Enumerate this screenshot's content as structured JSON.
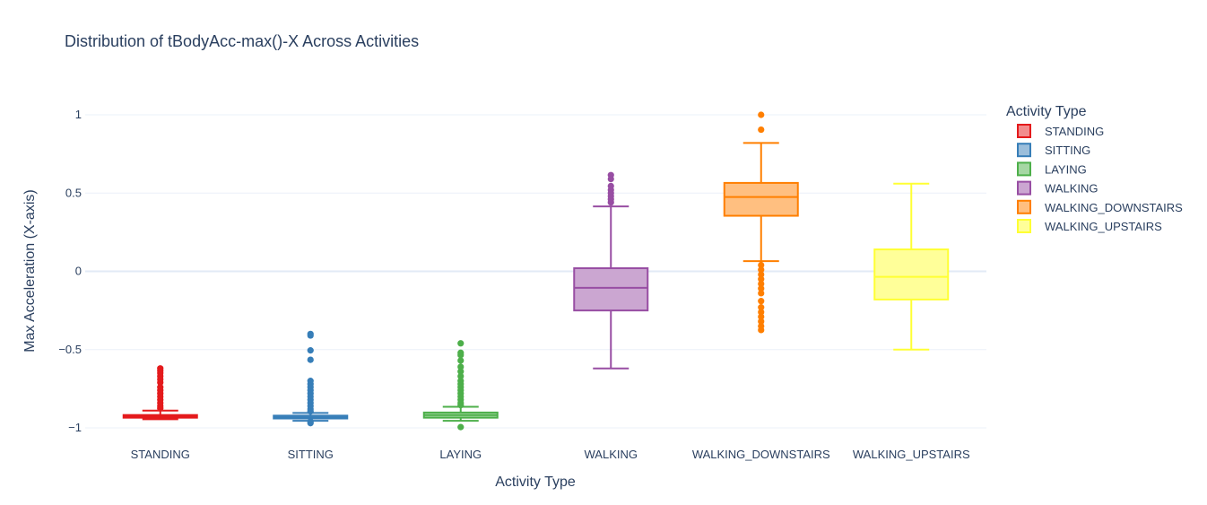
{
  "chart_data": {
    "type": "box",
    "title": "Distribution of tBodyAcc-max()-X Across Activities",
    "xlabel": "Activity Type",
    "ylabel": "Max Acceleration (X-axis)",
    "ylim": [
      -1.05,
      1.1
    ],
    "yticks": [
      1,
      0.5,
      0,
      -0.5,
      -1
    ],
    "ytick_labels": [
      "1",
      "0.5",
      "0",
      "−0.5",
      "−1"
    ],
    "grid": true,
    "legend": {
      "title": "Activity Type",
      "placement": "right"
    },
    "categories": [
      "STANDING",
      "SITTING",
      "LAYING",
      "WALKING",
      "WALKING_DOWNSTAIRS",
      "WALKING_UPSTAIRS"
    ],
    "series": [
      {
        "name": "STANDING",
        "color": "#e41a1c",
        "fill": "#f28c8d",
        "lower_whisker": -0.945,
        "q1": -0.935,
        "median": -0.928,
        "q3": -0.918,
        "upper_whisker": -0.89,
        "outliers": [
          -0.62,
          -0.635,
          -0.65,
          -0.67,
          -0.69,
          -0.71,
          -0.74,
          -0.76,
          -0.78,
          -0.8,
          -0.82,
          -0.84,
          -0.86,
          -0.875
        ]
      },
      {
        "name": "SITTING",
        "color": "#377eb8",
        "fill": "#9bbedb",
        "lower_whisker": -0.955,
        "q1": -0.94,
        "median": -0.932,
        "q3": -0.922,
        "upper_whisker": -0.905,
        "outliers": [
          -0.4,
          -0.41,
          -0.505,
          -0.565,
          -0.7,
          -0.72,
          -0.74,
          -0.76,
          -0.78,
          -0.8,
          -0.82,
          -0.84,
          -0.86,
          -0.88,
          -0.895,
          -0.96,
          -0.97
        ]
      },
      {
        "name": "LAYING",
        "color": "#4daf4a",
        "fill": "#a6d7a4",
        "lower_whisker": -0.955,
        "q1": -0.935,
        "median": -0.918,
        "q3": -0.902,
        "upper_whisker": -0.865,
        "outliers": [
          -0.46,
          -0.52,
          -0.535,
          -0.57,
          -0.61,
          -0.64,
          -0.67,
          -0.7,
          -0.72,
          -0.74,
          -0.76,
          -0.78,
          -0.8,
          -0.82,
          -0.84,
          -0.855,
          -0.995
        ]
      },
      {
        "name": "WALKING",
        "color": "#984ea3",
        "fill": "#cba6d1",
        "lower_whisker": -0.62,
        "q1": -0.25,
        "median": -0.105,
        "q3": 0.02,
        "upper_whisker": 0.415,
        "outliers": [
          0.44,
          0.46,
          0.48,
          0.5,
          0.52,
          0.545,
          0.59,
          0.615
        ]
      },
      {
        "name": "WALKING_DOWNSTAIRS",
        "color": "#ff7f00",
        "fill": "#ffbf80",
        "lower_whisker": 0.065,
        "q1": 0.355,
        "median": 0.475,
        "q3": 0.565,
        "upper_whisker": 0.82,
        "outliers": [
          1.0,
          0.905,
          0.04,
          0.01,
          -0.02,
          -0.05,
          -0.08,
          -0.11,
          -0.14,
          -0.19,
          -0.23,
          -0.26,
          -0.29,
          -0.32,
          -0.35,
          -0.375
        ]
      },
      {
        "name": "WALKING_UPSTAIRS",
        "color": "#ffff33",
        "fill": "#ffff99",
        "lower_whisker": -0.5,
        "q1": -0.18,
        "median": -0.035,
        "q3": 0.14,
        "upper_whisker": 0.56,
        "outliers": []
      }
    ]
  }
}
